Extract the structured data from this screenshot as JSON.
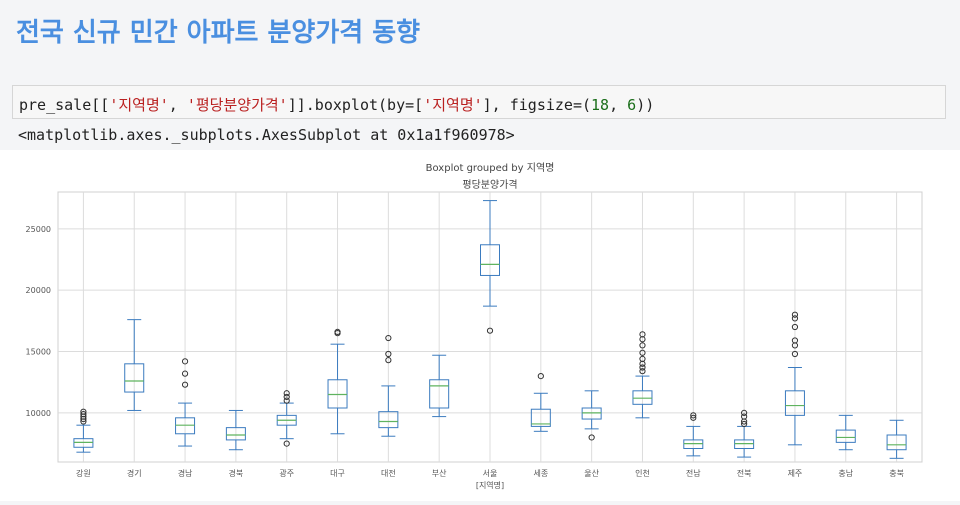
{
  "page": {
    "title": "전국 신규 민간 아파트 분양가격 동향"
  },
  "code_cell": {
    "parts": [
      {
        "text": "pre_sale[[",
        "kind": "plain"
      },
      {
        "text": "'지역명'",
        "kind": "str"
      },
      {
        "text": ", ",
        "kind": "plain"
      },
      {
        "text": "'평당분양가격'",
        "kind": "str"
      },
      {
        "text": "]].boxplot(by=[",
        "kind": "plain"
      },
      {
        "text": "'지역명'",
        "kind": "str"
      },
      {
        "text": "], figsize=(",
        "kind": "plain"
      },
      {
        "text": "18",
        "kind": "num"
      },
      {
        "text": ", ",
        "kind": "plain"
      },
      {
        "text": "6",
        "kind": "num"
      },
      {
        "text": "))",
        "kind": "plain"
      }
    ]
  },
  "output": {
    "text": "<matplotlib.axes._subplots.AxesSubplot at 0x1a1f960978>"
  },
  "colors": {
    "box": "#3b7bbf",
    "median": "#5fb35f",
    "outlier_stroke": "#333333",
    "grid": "#dcdcdc"
  },
  "chart_data": {
    "type": "box",
    "suptitle": "Boxplot grouped by 지역명",
    "title": "평당분양가격",
    "xlabel": "[지역명]",
    "ylabel": "",
    "ylim": [
      6000,
      28000
    ],
    "yticks": [
      10000,
      15000,
      20000,
      25000
    ],
    "grid": true,
    "categories": [
      "강원",
      "경기",
      "경남",
      "경북",
      "광주",
      "대구",
      "대전",
      "부산",
      "서울",
      "세종",
      "울산",
      "인천",
      "전남",
      "전북",
      "제주",
      "충남",
      "충북"
    ],
    "boxes": [
      {
        "name": "강원",
        "whisker_low": 6800,
        "q1": 7200,
        "median": 7600,
        "q3": 7900,
        "whisker_high": 9000,
        "outliers": [
          9300,
          9500,
          9700,
          9900,
          10100
        ]
      },
      {
        "name": "경기",
        "whisker_low": 10200,
        "q1": 11700,
        "median": 12600,
        "q3": 14000,
        "whisker_high": 17600,
        "outliers": []
      },
      {
        "name": "경남",
        "whisker_low": 7300,
        "q1": 8300,
        "median": 9000,
        "q3": 9600,
        "whisker_high": 10800,
        "outliers": [
          12300,
          13200,
          14200
        ]
      },
      {
        "name": "경북",
        "whisker_low": 7000,
        "q1": 7800,
        "median": 8200,
        "q3": 8800,
        "whisker_high": 10200,
        "outliers": []
      },
      {
        "name": "광주",
        "whisker_low": 7900,
        "q1": 9000,
        "median": 9400,
        "q3": 9800,
        "whisker_high": 10800,
        "outliers": [
          7500,
          11000,
          11300,
          11600
        ]
      },
      {
        "name": "대구",
        "whisker_low": 8300,
        "q1": 10400,
        "median": 11500,
        "q3": 12700,
        "whisker_high": 15600,
        "outliers": [
          16500,
          16600
        ]
      },
      {
        "name": "대전",
        "whisker_low": 8100,
        "q1": 8800,
        "median": 9300,
        "q3": 10100,
        "whisker_high": 12200,
        "outliers": [
          14300,
          14800,
          16100
        ]
      },
      {
        "name": "부산",
        "whisker_low": 9700,
        "q1": 10400,
        "median": 12200,
        "q3": 12700,
        "whisker_high": 14700,
        "outliers": []
      },
      {
        "name": "서울",
        "whisker_low": 18700,
        "q1": 21200,
        "median": 22100,
        "q3": 23700,
        "whisker_high": 27300,
        "outliers": [
          16700
        ]
      },
      {
        "name": "세종",
        "whisker_low": 8500,
        "q1": 8900,
        "median": 9100,
        "q3": 10300,
        "whisker_high": 11600,
        "outliers": [
          13000
        ]
      },
      {
        "name": "울산",
        "whisker_low": 8700,
        "q1": 9500,
        "median": 10000,
        "q3": 10400,
        "whisker_high": 11800,
        "outliers": [
          8000
        ]
      },
      {
        "name": "인천",
        "whisker_low": 9600,
        "q1": 10700,
        "median": 11200,
        "q3": 11800,
        "whisker_high": 13000,
        "outliers": [
          13400,
          13700,
          14000,
          14400,
          14900,
          15500,
          16000,
          16400
        ]
      },
      {
        "name": "전남",
        "whisker_low": 6500,
        "q1": 7100,
        "median": 7500,
        "q3": 7800,
        "whisker_high": 8900,
        "outliers": [
          9600,
          9800
        ]
      },
      {
        "name": "전북",
        "whisker_low": 6400,
        "q1": 7100,
        "median": 7500,
        "q3": 7800,
        "whisker_high": 8900,
        "outliers": [
          9100,
          9300,
          9700,
          10000
        ]
      },
      {
        "name": "제주",
        "whisker_low": 7400,
        "q1": 9800,
        "median": 10600,
        "q3": 11800,
        "whisker_high": 13700,
        "outliers": [
          14800,
          15500,
          15900,
          17000,
          17700,
          18000
        ]
      },
      {
        "name": "충남",
        "whisker_low": 7000,
        "q1": 7600,
        "median": 8000,
        "q3": 8600,
        "whisker_high": 9800,
        "outliers": []
      },
      {
        "name": "충북",
        "whisker_low": 6300,
        "q1": 7000,
        "median": 7400,
        "q3": 8200,
        "whisker_high": 9400,
        "outliers": []
      }
    ]
  }
}
